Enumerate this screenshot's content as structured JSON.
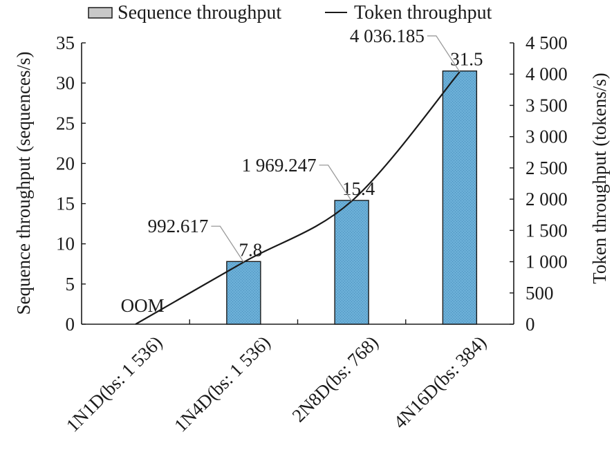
{
  "chart_data": {
    "type": "bar",
    "categories": [
      "1N1D(bs: 1 536)",
      "1N4D(bs: 1 536)",
      "2N8D(bs: 768)",
      "4N16D(bs: 384)"
    ],
    "series": [
      {
        "name": "Sequence throughput",
        "type": "bar",
        "axis": "left",
        "values": [
          0,
          7.8,
          15.4,
          31.5
        ],
        "labels": [
          "OOM",
          "7.8",
          "15.4",
          "31.5"
        ],
        "color": "#6aaed6"
      },
      {
        "name": "Token throughput",
        "type": "line",
        "axis": "right",
        "values": [
          0,
          992.617,
          1969.247,
          4036.185
        ],
        "labels": [
          "",
          "992.617",
          "1 969.247",
          "4 036.185"
        ],
        "color": "#1a1a1a"
      }
    ],
    "ylabel": "Sequence throughput (sequences/s)",
    "y2label": "Token throughput (tokens/s)",
    "ylim": [
      0,
      35
    ],
    "y2lim": [
      0,
      4500
    ],
    "yticks": [
      {
        "value": 0,
        "label": "0"
      },
      {
        "value": 5,
        "label": "5"
      },
      {
        "value": 10,
        "label": "10"
      },
      {
        "value": 15,
        "label": "15"
      },
      {
        "value": 20,
        "label": "20"
      },
      {
        "value": 25,
        "label": "25"
      },
      {
        "value": 30,
        "label": "30"
      },
      {
        "value": 35,
        "label": "35"
      }
    ],
    "y2ticks": [
      {
        "value": 0,
        "label": "0"
      },
      {
        "value": 500,
        "label": "500"
      },
      {
        "value": 1000,
        "label": "1 000"
      },
      {
        "value": 1500,
        "label": "1 500"
      },
      {
        "value": 2000,
        "label": "2 000"
      },
      {
        "value": 2500,
        "label": "2 500"
      },
      {
        "value": 3000,
        "label": "3 000"
      },
      {
        "value": 3500,
        "label": "3 500"
      },
      {
        "value": 4000,
        "label": "4 000"
      },
      {
        "value": 4500,
        "label": "4 500"
      }
    ],
    "legend": "top",
    "grid": false
  }
}
